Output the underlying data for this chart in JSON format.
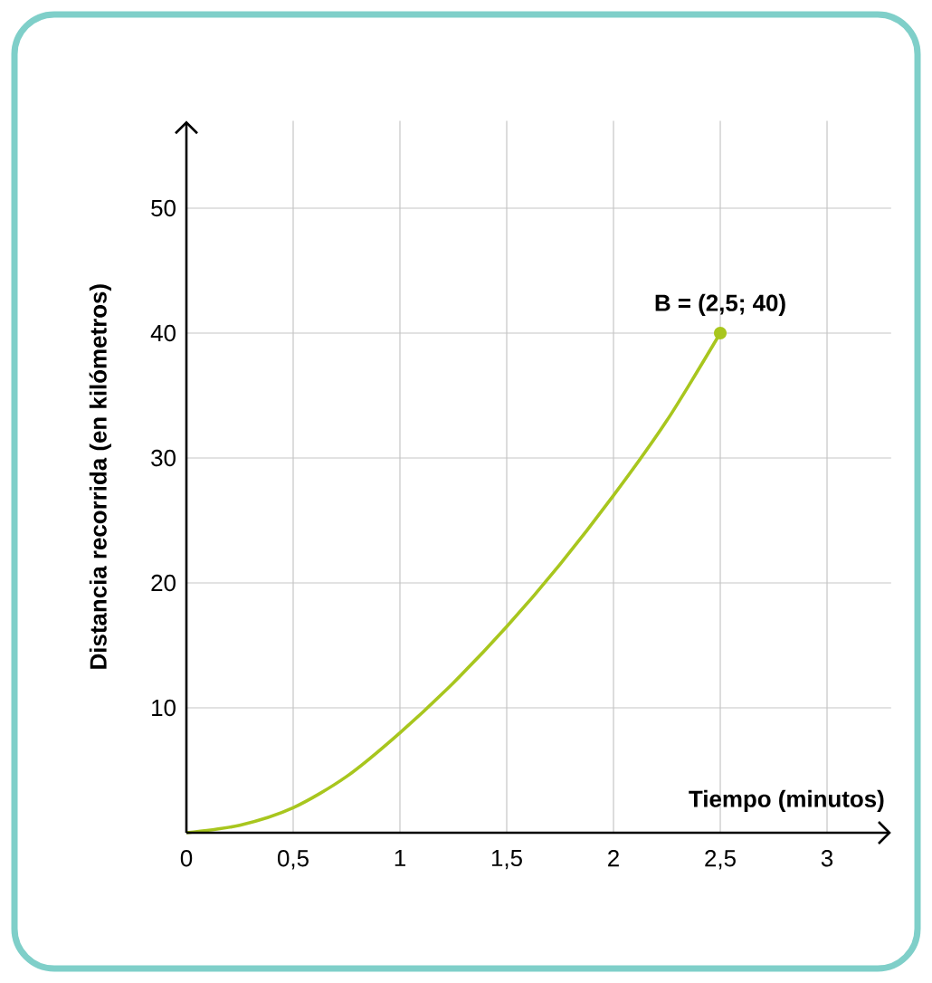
{
  "chart_data": {
    "type": "line",
    "xlabel": "Tiempo (minutos)",
    "ylabel": "Distancia recorrida (en kilómetros)",
    "x": [
      0,
      0.25,
      0.5,
      0.75,
      1,
      1.25,
      1.5,
      1.75,
      2,
      2.25,
      2.5
    ],
    "values": [
      0,
      0.6,
      2,
      4.5,
      8,
      12,
      16.5,
      21.5,
      27,
      33,
      40
    ],
    "color": "#a8c61e",
    "xlim": [
      0,
      3.3
    ],
    "ylim": [
      0,
      57
    ],
    "xticks": [
      0,
      {
        "value": 0.5,
        "label": "0,5"
      },
      1,
      {
        "value": 1.5,
        "label": "1,5"
      },
      2,
      {
        "value": 2.5,
        "label": "2,5"
      },
      3
    ],
    "yticks": [
      10,
      20,
      30,
      40,
      50
    ],
    "grid": true,
    "marker": "none",
    "line_style": "solid",
    "annotations": [
      {
        "text": "B = (2,5; 40)",
        "x": 2.5,
        "y": 40
      }
    ]
  }
}
